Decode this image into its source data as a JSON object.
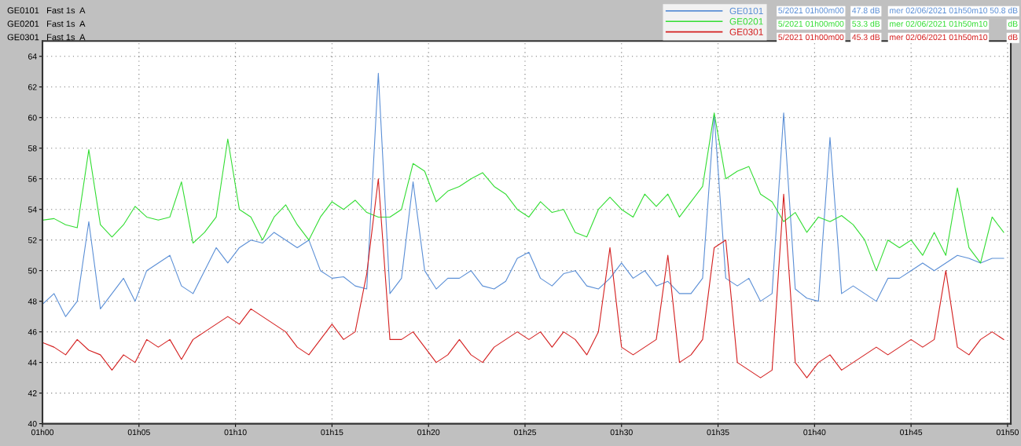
{
  "chart_data": {
    "type": "line",
    "x": [
      "2021-06-02T01:00:00",
      "2021-06-02T01:00:36",
      "2021-06-02T01:01:12",
      "2021-06-02T01:01:48",
      "2021-06-02T01:02:24",
      "2021-06-02T01:03:00",
      "2021-06-02T01:03:36",
      "2021-06-02T01:04:12",
      "2021-06-02T01:04:48",
      "2021-06-02T01:05:24",
      "2021-06-02T01:06:00",
      "2021-06-02T01:06:36",
      "2021-06-02T01:07:12",
      "2021-06-02T01:07:48",
      "2021-06-02T01:08:24",
      "2021-06-02T01:09:00",
      "2021-06-02T01:09:36",
      "2021-06-02T01:10:12",
      "2021-06-02T01:10:48",
      "2021-06-02T01:11:24",
      "2021-06-02T01:12:00",
      "2021-06-02T01:12:36",
      "2021-06-02T01:13:12",
      "2021-06-02T01:13:48",
      "2021-06-02T01:14:24",
      "2021-06-02T01:15:00",
      "2021-06-02T01:15:36",
      "2021-06-02T01:16:12",
      "2021-06-02T01:16:48",
      "2021-06-02T01:17:24",
      "2021-06-02T01:18:00",
      "2021-06-02T01:18:36",
      "2021-06-02T01:19:12",
      "2021-06-02T01:19:48",
      "2021-06-02T01:20:24",
      "2021-06-02T01:21:00",
      "2021-06-02T01:21:36",
      "2021-06-02T01:22:12",
      "2021-06-02T01:22:48",
      "2021-06-02T01:23:24",
      "2021-06-02T01:24:00",
      "2021-06-02T01:24:36",
      "2021-06-02T01:25:12",
      "2021-06-02T01:25:48",
      "2021-06-02T01:26:24",
      "2021-06-02T01:27:00",
      "2021-06-02T01:27:36",
      "2021-06-02T01:28:12",
      "2021-06-02T01:28:48",
      "2021-06-02T01:29:24",
      "2021-06-02T01:30:00",
      "2021-06-02T01:30:36",
      "2021-06-02T01:31:12",
      "2021-06-02T01:31:48",
      "2021-06-02T01:32:24",
      "2021-06-02T01:33:00",
      "2021-06-02T01:33:36",
      "2021-06-02T01:34:12",
      "2021-06-02T01:34:48",
      "2021-06-02T01:35:24",
      "2021-06-02T01:36:00",
      "2021-06-02T01:36:36",
      "2021-06-02T01:37:12",
      "2021-06-02T01:37:48",
      "2021-06-02T01:38:24",
      "2021-06-02T01:39:00",
      "2021-06-02T01:39:36",
      "2021-06-02T01:40:12",
      "2021-06-02T01:40:48",
      "2021-06-02T01:41:24",
      "2021-06-02T01:42:00",
      "2021-06-02T01:42:36",
      "2021-06-02T01:43:12",
      "2021-06-02T01:43:48",
      "2021-06-02T01:44:24",
      "2021-06-02T01:45:00",
      "2021-06-02T01:45:36",
      "2021-06-02T01:46:12",
      "2021-06-02T01:46:48",
      "2021-06-02T01:47:24",
      "2021-06-02T01:48:00",
      "2021-06-02T01:48:36",
      "2021-06-02T01:49:12",
      "2021-06-02T01:49:48"
    ],
    "series": [
      {
        "name": "GE0101",
        "color": "#5b8fd6",
        "values": [
          47.8,
          48.5,
          47.0,
          48.0,
          53.2,
          47.5,
          48.5,
          49.5,
          48.0,
          50.0,
          50.5,
          51.0,
          49.0,
          48.5,
          50.0,
          51.5,
          50.5,
          51.5,
          52.0,
          51.8,
          52.5,
          52.0,
          51.5,
          52.0,
          50.0,
          49.5,
          49.6,
          49.0,
          48.8,
          62.9,
          48.5,
          49.5,
          55.8,
          50.0,
          48.8,
          49.5,
          49.5,
          50.0,
          49.0,
          48.8,
          49.3,
          50.8,
          51.2,
          49.5,
          49.0,
          49.8,
          50.0,
          49.0,
          48.8,
          49.5,
          50.5,
          49.5,
          50.0,
          49.0,
          49.3,
          48.5,
          48.5,
          49.5,
          60.2,
          49.5,
          49.0,
          49.5,
          48.0,
          48.5,
          60.3,
          48.8,
          48.2,
          48.0,
          58.7,
          48.5,
          49.0,
          48.5,
          48.0,
          49.5,
          49.5,
          50.0,
          50.5,
          50.0,
          50.5,
          51.0,
          50.8,
          50.5,
          50.8,
          50.8
        ]
      },
      {
        "name": "GE0201",
        "color": "#33dd33",
        "values": [
          53.3,
          53.4,
          53.0,
          52.8,
          57.9,
          53.0,
          52.2,
          53.0,
          54.2,
          53.5,
          53.3,
          53.5,
          55.8,
          51.8,
          52.5,
          53.5,
          58.6,
          54.0,
          53.5,
          52.0,
          53.5,
          54.3,
          53.0,
          52.0,
          53.5,
          54.5,
          54.0,
          54.6,
          53.8,
          53.5,
          53.5,
          54.0,
          57.0,
          56.5,
          54.5,
          55.2,
          55.5,
          56.0,
          56.4,
          55.5,
          55.0,
          54.0,
          53.5,
          54.5,
          53.8,
          54.0,
          52.5,
          52.2,
          54.0,
          54.8,
          54.0,
          53.5,
          55.0,
          54.2,
          55.0,
          53.5,
          54.5,
          55.5,
          60.3,
          56.0,
          56.5,
          56.8,
          55.0,
          54.5,
          53.2,
          53.8,
          52.5,
          53.5,
          53.2,
          53.6,
          53.0,
          52.0,
          50.0,
          52.0,
          51.5,
          52.0,
          51.0,
          52.5,
          51.0,
          55.4,
          51.5,
          50.5,
          53.5,
          52.5
        ]
      },
      {
        "name": "GE0301",
        "color": "#d42020",
        "values": [
          45.3,
          45.0,
          44.5,
          45.5,
          44.8,
          44.5,
          43.5,
          44.5,
          44.0,
          45.5,
          45.0,
          45.5,
          44.2,
          45.5,
          46.0,
          46.5,
          47.0,
          46.5,
          47.5,
          47.0,
          46.5,
          46.0,
          45.0,
          44.5,
          45.5,
          46.5,
          45.5,
          46.0,
          49.8,
          56.0,
          45.5,
          45.5,
          46.0,
          45.0,
          44.0,
          44.5,
          45.5,
          44.5,
          44.0,
          45.0,
          45.5,
          46.0,
          45.5,
          46.0,
          45.0,
          46.0,
          45.5,
          44.5,
          46.0,
          51.5,
          45.0,
          44.5,
          45.0,
          45.5,
          51.0,
          44.0,
          44.5,
          45.5,
          51.5,
          52.0,
          44.0,
          43.5,
          43.0,
          43.5,
          55.0,
          44.0,
          43.0,
          44.0,
          44.5,
          43.5,
          44.0,
          44.5,
          45.0,
          44.5,
          45.0,
          45.5,
          45.0,
          45.5,
          50.0,
          45.0,
          44.5,
          45.5,
          46.0,
          45.5
        ]
      }
    ],
    "xlim": [
      "2021-06-02T01:00:00",
      "2021-06-02T01:50:10"
    ],
    "xticks": [
      {
        "value": "2021-06-02T01:00",
        "label": "01h00"
      },
      {
        "value": "2021-06-02T01:05",
        "label": "01h05"
      },
      {
        "value": "2021-06-02T01:10",
        "label": "01h10"
      },
      {
        "value": "2021-06-02T01:15",
        "label": "01h15"
      },
      {
        "value": "2021-06-02T01:20",
        "label": "01h20"
      },
      {
        "value": "2021-06-02T01:25",
        "label": "01h25"
      },
      {
        "value": "2021-06-02T01:30",
        "label": "01h30"
      },
      {
        "value": "2021-06-02T01:35",
        "label": "01h35"
      },
      {
        "value": "2021-06-02T01:40",
        "label": "01h40"
      },
      {
        "value": "2021-06-02T01:45",
        "label": "01h45"
      },
      {
        "value": "2021-06-02T01:50",
        "label": "01h50"
      }
    ],
    "ylim": [
      40,
      65
    ],
    "yticks": [
      40,
      42,
      44,
      46,
      48,
      50,
      52,
      54,
      56,
      58,
      60,
      62,
      64
    ],
    "grid": true,
    "legend": "top right",
    "marker": "none",
    "line_style": "solid",
    "annotations": [
      "GE0101   Fast 1s  A",
      "GE0201   Fast 1s  A",
      "GE0301   Fast 1s  A",
      "5/2021 01h00m00",
      "47.8 dB",
      "mer 02/06/2021 01h50m10",
      "50.8 dB",
      "5/2021 01h00m00",
      "53.3 dB",
      "mer 02/06/2021 01h50m10",
      "dB",
      "5/2021 01h00m00",
      "45.3 dB",
      "mer 02/06/2021 01h50m10",
      "dB"
    ]
  }
}
